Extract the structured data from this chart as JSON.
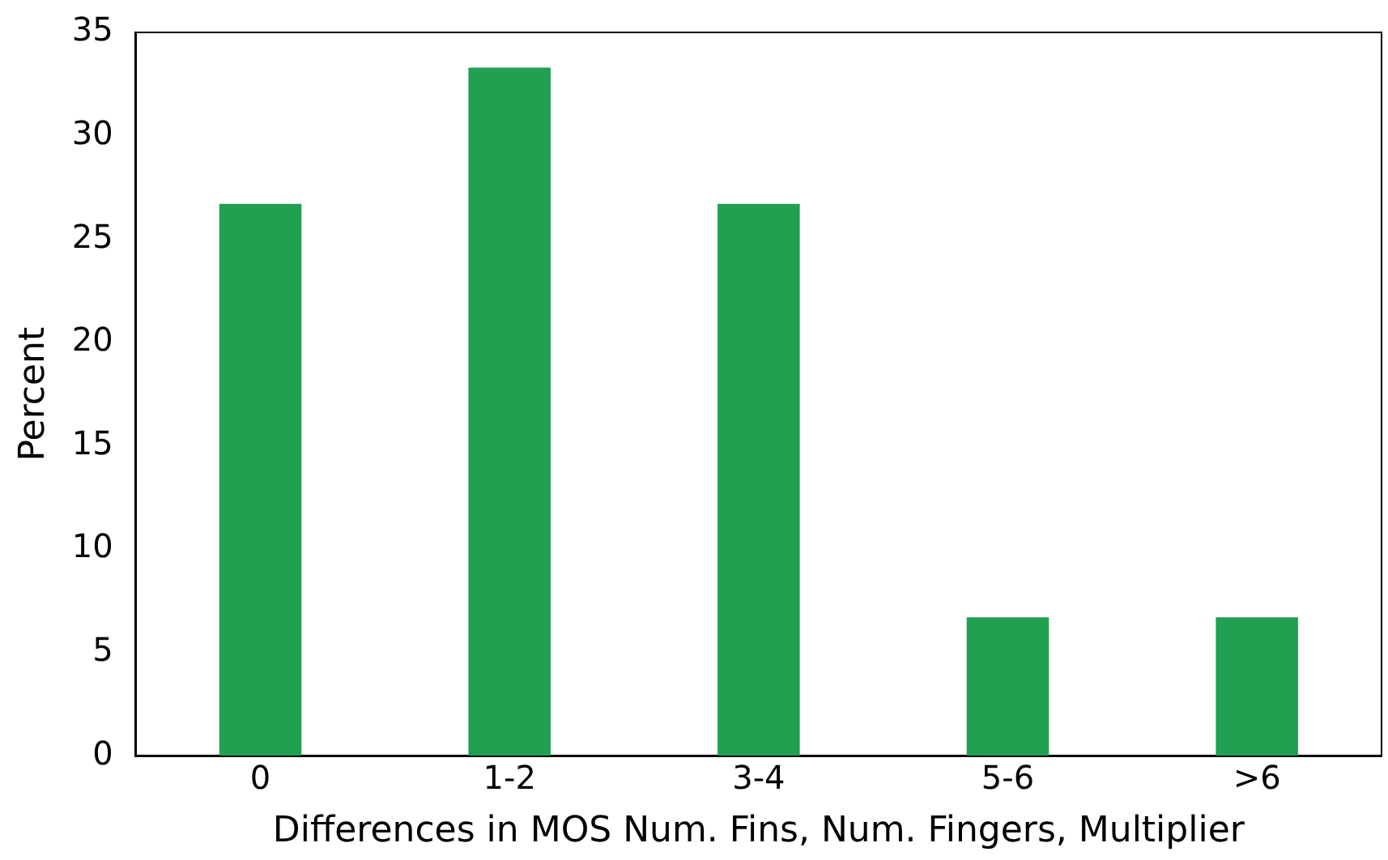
{
  "chart_data": {
    "type": "bar",
    "xlabel": "Differences in MOS Num. Fins, Num. Fingers, Multiplier",
    "ylabel": "Percent",
    "categories": [
      "0",
      "1-2",
      "3-4",
      "5-6",
      ">6"
    ],
    "values": [
      26.7,
      33.3,
      26.7,
      6.7,
      6.7
    ],
    "color": "#21a052",
    "ylim": [
      0,
      35
    ],
    "yticks": [
      0,
      5,
      10,
      15,
      20,
      25,
      30,
      35
    ],
    "grid": false,
    "legend": false
  }
}
